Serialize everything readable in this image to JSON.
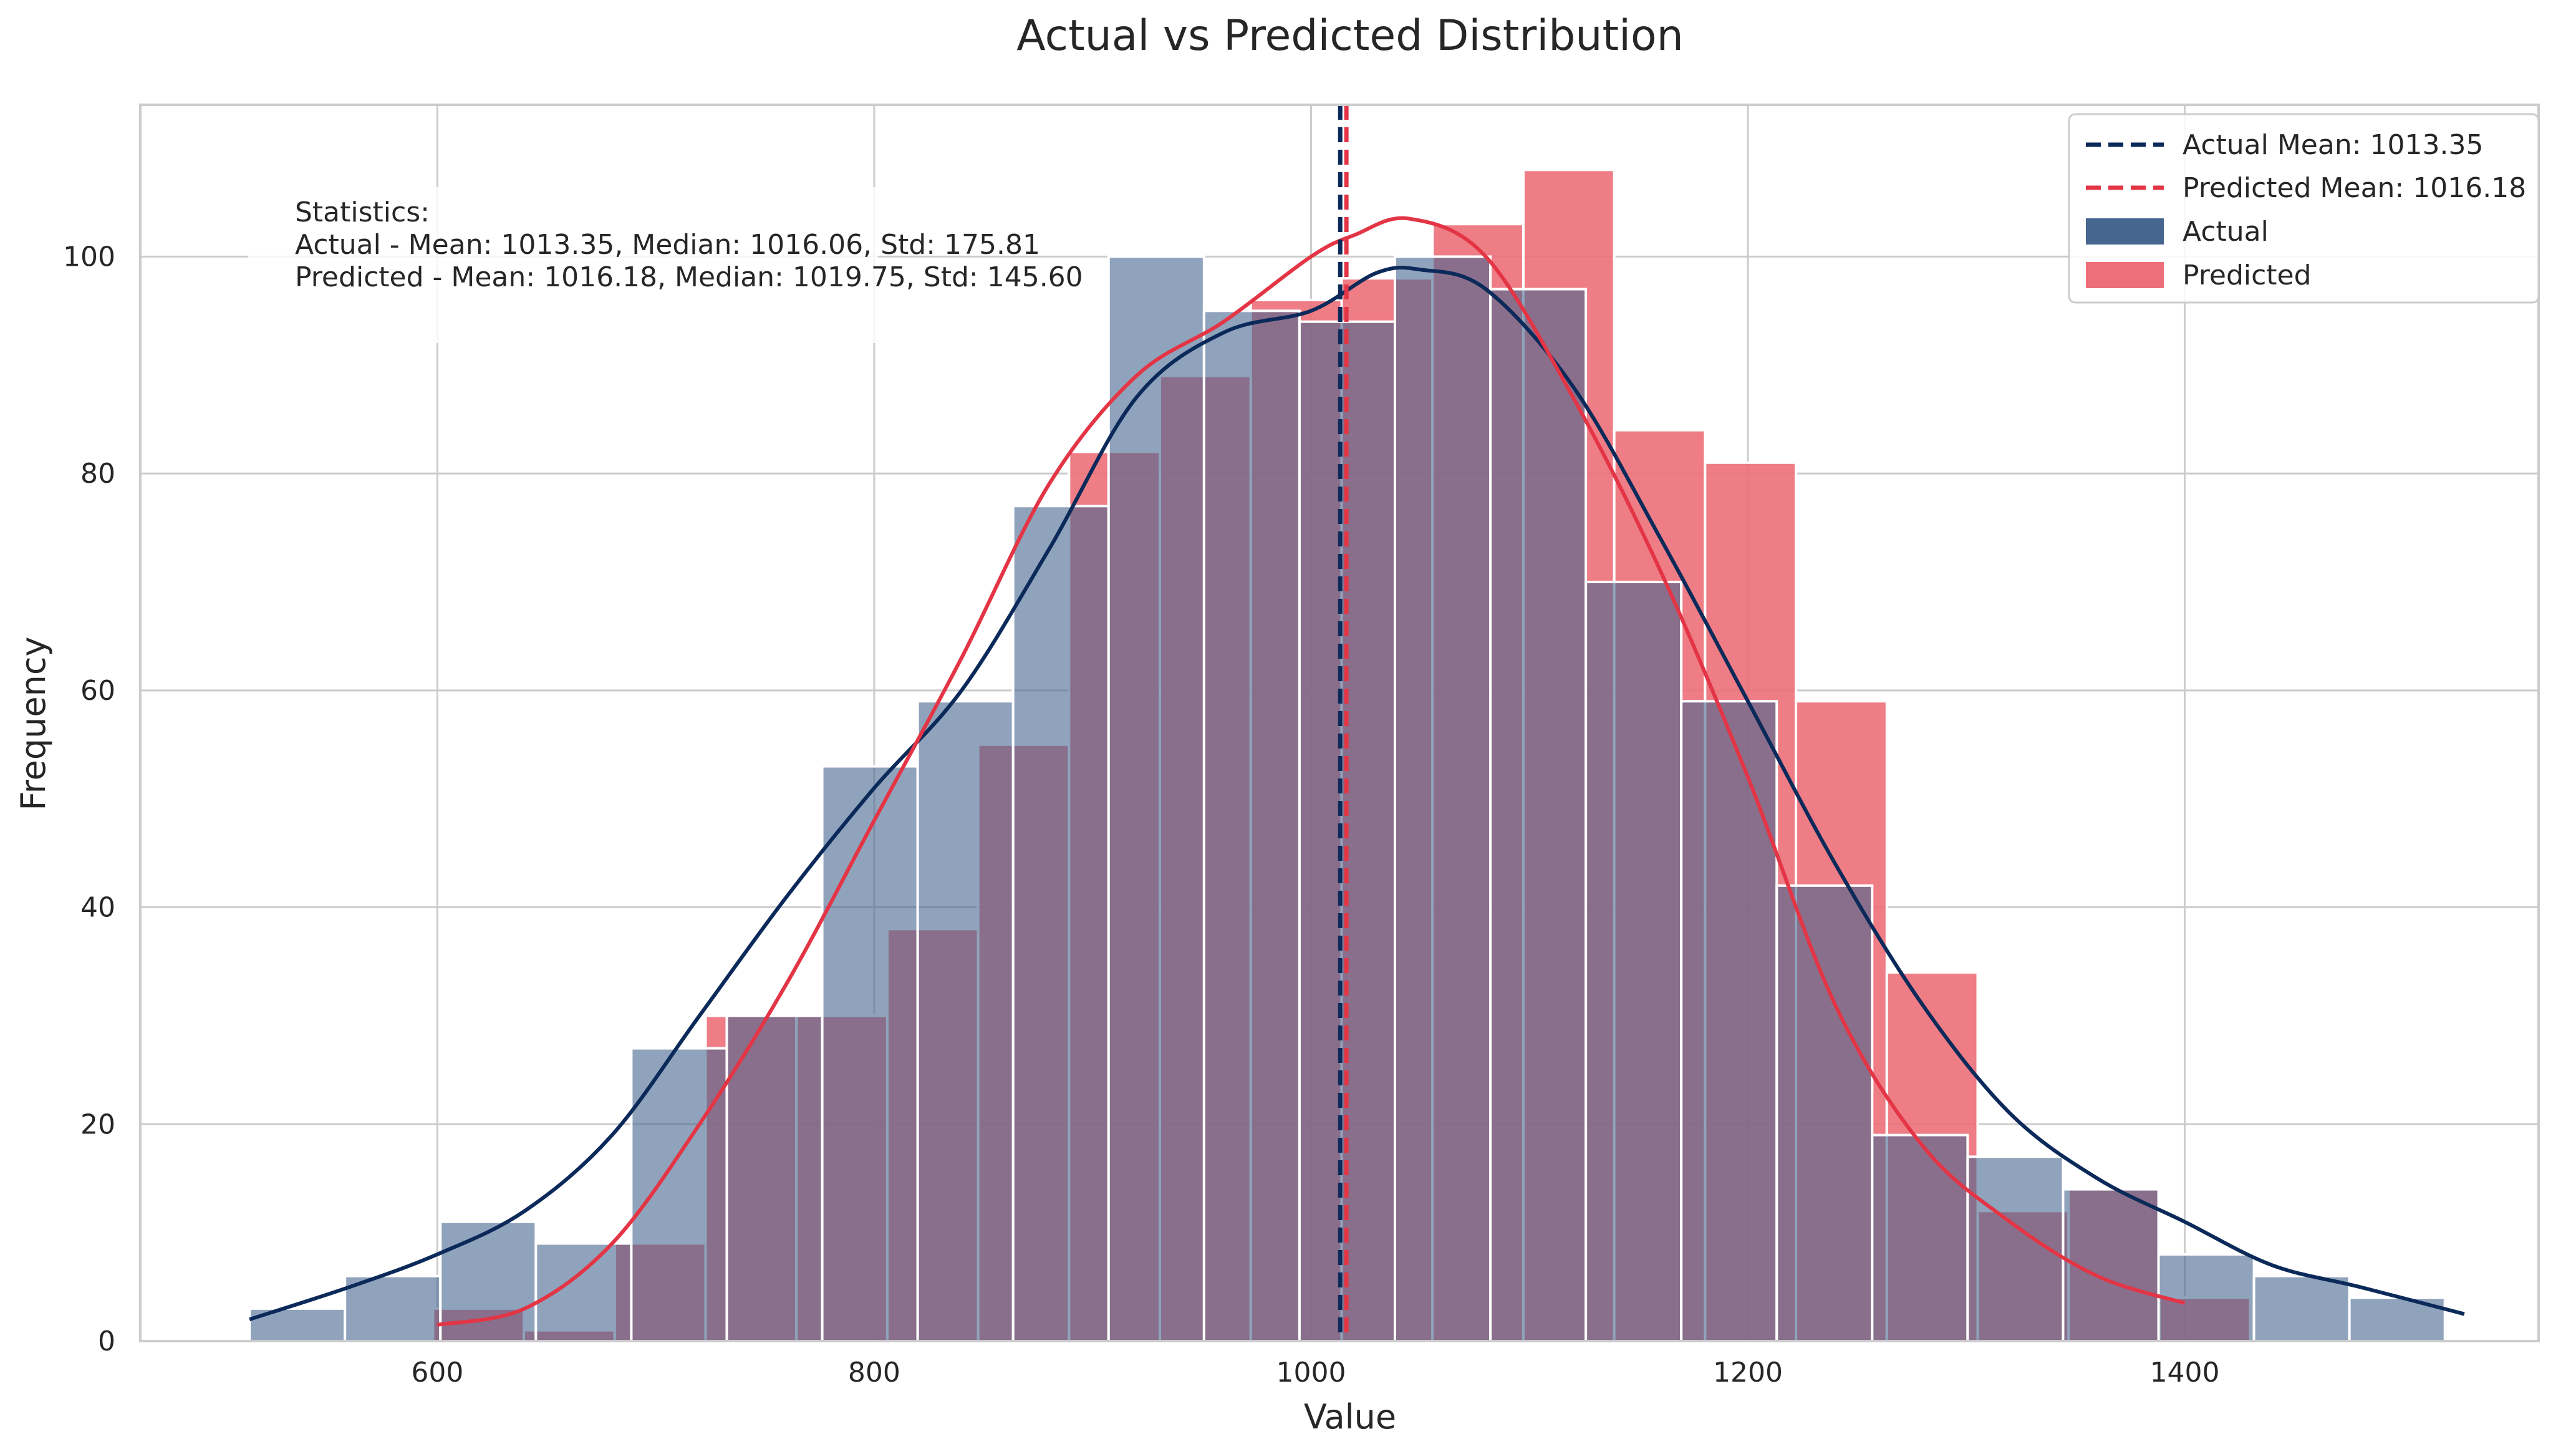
{
  "chart_data": {
    "type": "bar",
    "title": "Actual vs Predicted Distribution",
    "xlabel": "Value",
    "ylabel": "Frequency",
    "xlim": [
      464,
      1562
    ],
    "ylim": [
      0,
      114
    ],
    "xticks": [
      600,
      800,
      1000,
      1200,
      1400
    ],
    "yticks": [
      0,
      20,
      40,
      60,
      80,
      100
    ],
    "grid": true,
    "legend_position": "top-right",
    "legend": [
      {
        "label": "Actual Mean: 1013.35",
        "kind": "dashed-line",
        "color": "#0b2a5a"
      },
      {
        "label": "Predicted Mean: 1016.18",
        "kind": "dashed-line",
        "color": "#e33545"
      },
      {
        "label": "Actual",
        "kind": "patch",
        "color": "#46668f"
      },
      {
        "label": "Predicted",
        "kind": "patch",
        "color": "#ec6f79"
      }
    ],
    "stats_text": [
      "Statistics:",
      "Actual - Mean: 1013.35, Median: 1016.06, Std: 175.81",
      "Predicted - Mean: 1016.18, Median: 1019.75, Std: 145.60"
    ],
    "series": [
      {
        "name": "Actual",
        "color": "#46668f",
        "bin_start": 514,
        "bin_width": 43.7,
        "counts": [
          3,
          6,
          11,
          9,
          27,
          30,
          53,
          59,
          77,
          100,
          95,
          94,
          100,
          97,
          70,
          59,
          42,
          19,
          17,
          14,
          8,
          6,
          4
        ],
        "kde_x": [
          514,
          560,
          600,
          640,
          680,
          720,
          760,
          800,
          840,
          880,
          920,
          960,
          1000,
          1030,
          1050,
          1080,
          1120,
          1160,
          1200,
          1240,
          1280,
          1320,
          1360,
          1400,
          1440,
          1480,
          1528
        ],
        "kde_y": [
          2,
          5,
          8,
          12,
          19,
          30,
          41,
          51,
          60,
          73,
          87,
          93,
          95,
          98.5,
          98.8,
          97,
          88,
          74,
          59,
          44,
          31,
          21,
          15,
          11,
          7,
          5,
          2.5
        ],
        "mean": 1013.35
      },
      {
        "name": "Predicted",
        "color": "#ec6f79",
        "bin_start": 598,
        "bin_width": 41.6,
        "counts": [
          3,
          1,
          9,
          30,
          30,
          38,
          55,
          82,
          89,
          96,
          98,
          103,
          108,
          84,
          81,
          59,
          34,
          12,
          14,
          4
        ],
        "kde_x": [
          600,
          640,
          680,
          720,
          760,
          800,
          840,
          880,
          920,
          960,
          1000,
          1020,
          1045,
          1080,
          1120,
          1160,
          1200,
          1240,
          1280,
          1320,
          1360,
          1400
        ],
        "kde_y": [
          1.5,
          3,
          9,
          20,
          33,
          48,
          63,
          79,
          89,
          94,
          100,
          102,
          103.5,
          100,
          87,
          71,
          52,
          31,
          18,
          11,
          6,
          3.5
        ],
        "mean": 1016.18
      }
    ]
  }
}
